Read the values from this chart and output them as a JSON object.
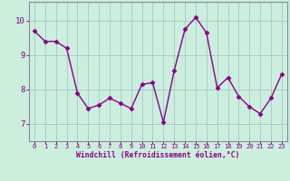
{
  "x": [
    0,
    1,
    2,
    3,
    4,
    5,
    6,
    7,
    8,
    9,
    10,
    11,
    12,
    13,
    14,
    15,
    16,
    17,
    18,
    19,
    20,
    21,
    22,
    23
  ],
  "y": [
    9.7,
    9.4,
    9.4,
    9.2,
    7.9,
    7.45,
    7.55,
    7.75,
    7.6,
    7.45,
    8.15,
    8.2,
    7.05,
    8.55,
    9.75,
    10.1,
    9.65,
    8.05,
    8.35,
    7.8,
    7.5,
    7.3,
    7.75,
    8.45
  ],
  "line_color": "#880088",
  "marker": "D",
  "markersize": 2.5,
  "linewidth": 1.0,
  "bg_color": "#cceedd",
  "grid_color": "#aacccc",
  "xlabel": "Windchill (Refroidissement éolien,°C)",
  "xlabel_color": "#880088",
  "tick_color": "#880088",
  "ylim": [
    6.5,
    10.55
  ],
  "xlim": [
    -0.5,
    23.5
  ],
  "yticks": [
    7,
    8,
    9,
    10
  ],
  "xticks": [
    0,
    1,
    2,
    3,
    4,
    5,
    6,
    7,
    8,
    9,
    10,
    11,
    12,
    13,
    14,
    15,
    16,
    17,
    18,
    19,
    20,
    21,
    22,
    23
  ],
  "axis_color": "#888899"
}
